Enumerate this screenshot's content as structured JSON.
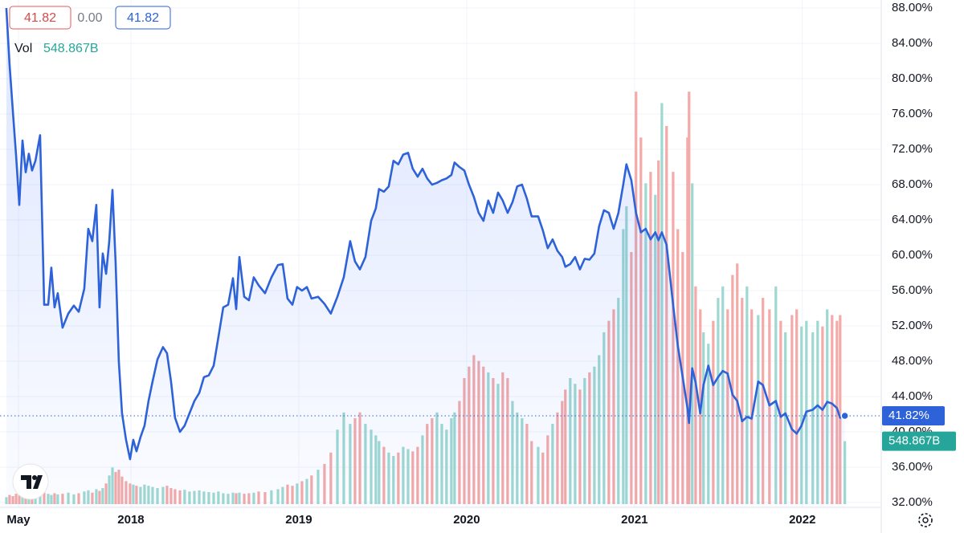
{
  "chart_data": {
    "type": "line",
    "legend_values": [
      41.82,
      0,
      41.82
    ],
    "legend_value_labels": [
      "41.82",
      "0.00",
      "41.82"
    ],
    "x": [
      2017.258,
      2017.277,
      2017.297,
      2017.316,
      2017.335,
      2017.354,
      2017.373,
      2017.392,
      2017.411,
      2017.431,
      2017.459,
      2017.483,
      2017.507,
      2017.526,
      2017.545,
      2017.564,
      2017.593,
      2017.627,
      2017.66,
      2017.689,
      2017.722,
      2017.746,
      2017.77,
      2017.794,
      2017.813,
      2017.832,
      2017.852,
      2017.871,
      2017.89,
      2017.909,
      2017.928,
      2017.947,
      2017.971,
      2017.995,
      2018.014,
      2018.033,
      2018.057,
      2018.081,
      2018.105,
      2018.129,
      2018.158,
      2018.191,
      2018.215,
      2018.239,
      2018.263,
      2018.292,
      2018.32,
      2018.349,
      2018.378,
      2018.407,
      2018.435,
      2018.464,
      2018.493,
      2018.521,
      2018.55,
      2018.579,
      2018.608,
      2018.627,
      2018.646,
      2018.675,
      2018.703,
      2018.732,
      2018.761,
      2018.799,
      2018.837,
      2018.876,
      2018.904,
      2018.933,
      2018.962,
      2018.99,
      2019.019,
      2019.048,
      2019.076,
      2019.115,
      2019.153,
      2019.191,
      2019.23,
      2019.268,
      2019.306,
      2019.335,
      2019.364,
      2019.397,
      2019.431,
      2019.459,
      2019.478,
      2019.507,
      2019.536,
      2019.564,
      2019.593,
      2019.622,
      2019.651,
      2019.679,
      2019.708,
      2019.737,
      2019.765,
      2019.794,
      2019.823,
      2019.852,
      2019.88,
      2019.909,
      2019.928,
      2019.957,
      2019.986,
      2020.014,
      2020.043,
      2020.072,
      2020.1,
      2020.129,
      2020.158,
      2020.187,
      2020.215,
      2020.244,
      2020.273,
      2020.301,
      2020.33,
      2020.359,
      2020.387,
      2020.426,
      2020.454,
      2020.483,
      2020.512,
      2020.541,
      2020.569,
      2020.588,
      2020.617,
      2020.646,
      2020.675,
      2020.703,
      2020.732,
      2020.761,
      2020.789,
      2020.818,
      2020.847,
      2020.876,
      2020.904,
      2020.933,
      2020.952,
      2020.981,
      2021.009,
      2021.038,
      2021.067,
      2021.096,
      2021.124,
      2021.143,
      2021.163,
      2021.191,
      2021.23,
      2021.258,
      2021.287,
      2021.316,
      2021.325,
      2021.344,
      2021.364,
      2021.392,
      2021.411,
      2021.44,
      2021.469,
      2021.498,
      2021.526,
      2021.555,
      2021.584,
      2021.612,
      2021.641,
      2021.67,
      2021.698,
      2021.737,
      2021.765,
      2021.804,
      2021.842,
      2021.871,
      2021.899,
      2021.938,
      2021.966,
      2021.995,
      2022.024,
      2022.062,
      2022.091,
      2022.12,
      2022.148,
      2022.177,
      2022.206,
      2022.225,
      2022.253
    ],
    "series": [
      {
        "color": "#2e62d9",
        "last_label": "41.82%",
        "values": [
          88,
          81.6,
          76.2,
          71.2,
          65.7,
          73,
          69.4,
          71.5,
          69.6,
          70.7,
          73.6,
          54.4,
          54.4,
          58.6,
          54.1,
          55.7,
          51.8,
          53.4,
          54.3,
          53.6,
          56.2,
          63,
          61.6,
          65.7,
          54.1,
          60.2,
          57.9,
          61.6,
          67.4,
          59,
          48,
          42.1,
          39.1,
          36.9,
          39.1,
          37.8,
          39.4,
          40.7,
          43.5,
          45.7,
          48.2,
          49.6,
          48.9,
          45.7,
          41.6,
          40,
          40.7,
          42.1,
          43.5,
          44.4,
          46.2,
          46.4,
          47.5,
          50.7,
          54.1,
          54.4,
          57.4,
          53.9,
          59.8,
          55.3,
          54.9,
          57.5,
          56.6,
          55.7,
          57.5,
          58.9,
          59,
          55.1,
          54.4,
          56.4,
          56,
          56.4,
          55.1,
          55.3,
          54.5,
          53.4,
          55.3,
          57.5,
          61.6,
          59.3,
          58.4,
          59.8,
          63.9,
          65.3,
          67.5,
          67.2,
          67.8,
          70.7,
          70.3,
          71.4,
          71.6,
          69.8,
          68.9,
          69.8,
          68.7,
          68,
          68.2,
          68.5,
          68.7,
          69.1,
          70.5,
          70,
          69.6,
          68,
          66.6,
          64.8,
          63.9,
          66.2,
          64.8,
          67.1,
          66.2,
          64.8,
          66,
          67.8,
          68,
          66.4,
          64.4,
          64.4,
          62.8,
          60.8,
          61.8,
          60.5,
          59.8,
          58.7,
          59,
          59.8,
          58.4,
          59.6,
          59.5,
          60.2,
          63.3,
          65.1,
          64.8,
          63,
          64.8,
          68,
          70.3,
          68.5,
          64.8,
          62.6,
          63,
          61.8,
          62.6,
          61.7,
          62.6,
          61.2,
          54.4,
          49.8,
          46.2,
          42.6,
          41,
          47.2,
          45.6,
          42.1,
          45.3,
          47.5,
          45.3,
          46.2,
          46.9,
          46.6,
          44.2,
          43.5,
          41.2,
          41.7,
          41.5,
          45.7,
          45.3,
          43,
          43.5,
          41.7,
          42.1,
          40.3,
          39.8,
          40.7,
          42.3,
          42.5,
          43,
          42.5,
          43.4,
          43.2,
          42.7,
          41.6,
          41.82
        ]
      }
    ],
    "volume": {
      "label": "Vol",
      "last_label": "548.867B",
      "up_color": "#9fd8d0",
      "down_color": "#f3aaa8",
      "ylim": [
        0,
        4400
      ],
      "values": [
        60,
        80,
        70,
        90,
        75,
        85,
        70,
        95,
        80,
        90,
        85,
        100,
        90,
        80,
        95,
        85,
        90,
        100,
        85,
        95,
        110,
        120,
        100,
        130,
        115,
        140,
        180,
        250,
        320,
        280,
        300,
        240,
        200,
        180,
        170,
        160,
        150,
        170,
        160,
        150,
        140,
        150,
        160,
        140,
        130,
        120,
        125,
        110,
        115,
        120,
        110,
        105,
        100,
        110,
        95,
        90,
        100,
        95,
        100,
        90,
        95,
        100,
        110,
        105,
        120,
        130,
        150,
        170,
        160,
        180,
        200,
        220,
        250,
        300,
        350,
        450,
        650,
        800,
        700,
        750,
        800,
        700,
        650,
        600,
        550,
        500,
        450,
        420,
        450,
        500,
        480,
        460,
        500,
        600,
        700,
        750,
        800,
        700,
        650,
        750,
        800,
        900,
        1100,
        1200,
        1300,
        1250,
        1200,
        1150,
        1100,
        1050,
        1150,
        1100,
        900,
        800,
        750,
        700,
        550,
        500,
        450,
        600,
        700,
        800,
        900,
        1000,
        1100,
        1050,
        1000,
        1100,
        1150,
        1200,
        1300,
        1500,
        1600,
        1700,
        1800,
        2400,
        2600,
        2200,
        3600,
        3200,
        2800,
        2900,
        2700,
        3000,
        3500,
        3300,
        2900,
        2400,
        2200,
        3200,
        3600,
        2800,
        1900,
        1700,
        1500,
        1400,
        1600,
        1800,
        1900,
        1700,
        2000,
        2100,
        1800,
        1900,
        1700,
        1650,
        1800,
        1700,
        1900,
        1600,
        1500,
        1650,
        1700,
        1550,
        1600,
        1500,
        1600,
        1550,
        1700,
        1650,
        1600,
        1650,
        548.867
      ]
    },
    "xlim": [
      2017.22,
      2022.47
    ],
    "xticks": [
      {
        "value": 2017.33,
        "label": "May"
      },
      2018,
      2019,
      2020,
      2021,
      2022
    ],
    "ylim": [
      32,
      88
    ],
    "yticks": [
      {
        "value": 32,
        "label": "32.00%"
      },
      {
        "value": 36,
        "label": "36.00%"
      },
      {
        "value": 40,
        "label": "40.00%"
      },
      {
        "value": 44,
        "label": "44.00%"
      },
      {
        "value": 48,
        "label": "48.00%"
      },
      {
        "value": 52,
        "label": "52.00%"
      },
      {
        "value": 56,
        "label": "56.00%"
      },
      {
        "value": 60,
        "label": "60.00%"
      },
      {
        "value": 64,
        "label": "64.00%"
      },
      {
        "value": 68,
        "label": "68.00%"
      },
      {
        "value": 72,
        "label": "72.00%"
      },
      {
        "value": 76,
        "label": "76.00%"
      },
      {
        "value": 80,
        "label": "80.00%"
      },
      {
        "value": 84,
        "label": "84.00%"
      },
      {
        "value": 88,
        "label": "88.00%"
      }
    ],
    "grid": true
  }
}
